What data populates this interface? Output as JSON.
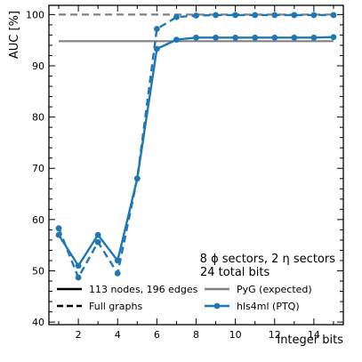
{
  "chart_data": {
    "type": "line",
    "title": "",
    "xlabel": "Integer bits",
    "ylabel": "AUC [%]",
    "xlim": [
      0.5,
      15.5
    ],
    "ylim": [
      39.5,
      101.8
    ],
    "xticks": [
      2,
      4,
      6,
      8,
      10,
      12,
      14
    ],
    "yticks": [
      40,
      50,
      60,
      70,
      80,
      90,
      100
    ],
    "grid": false,
    "annotation": [
      "8 ϕ sectors, 2 η sectors",
      "24 total bits"
    ],
    "reference_lines": [
      {
        "name": "PyG (expected)",
        "style": "solid",
        "value": 94.8,
        "color": "#808080"
      },
      {
        "name": "PyG (expected)",
        "style": "dashed",
        "value": 100.0,
        "color": "#808080"
      }
    ],
    "series": [
      {
        "style": "solid",
        "color": "#1f77b4",
        "x": [
          1,
          2,
          3,
          4,
          5,
          6,
          7,
          8,
          9,
          10,
          11,
          12,
          13,
          14,
          15
        ],
        "values": [
          57.0,
          51.0,
          57.0,
          52.0,
          68.0,
          93.3,
          95.1,
          95.5,
          95.5,
          95.5,
          95.5,
          95.5,
          95.5,
          95.5,
          95.6
        ]
      },
      {
        "style": "dashed",
        "color": "#1f77b4",
        "x": [
          1,
          2,
          3,
          4,
          5,
          6,
          7,
          8,
          9,
          10,
          11,
          12,
          13,
          14,
          15
        ],
        "values": [
          58.3,
          48.7,
          55.6,
          49.5,
          68.0,
          97.2,
          99.5,
          99.8,
          99.9,
          99.9,
          99.9,
          99.9,
          99.9,
          99.9,
          99.9
        ]
      }
    ],
    "legend": {
      "placement": "bottom",
      "entries": [
        {
          "label": "113 nodes, 196 edges",
          "style": "solid",
          "color": "#000000"
        },
        {
          "label": "Full graphs",
          "style": "dashed",
          "color": "#000000"
        },
        {
          "label": "PyG (expected)",
          "style": "solid",
          "color": "#808080"
        },
        {
          "label": "hls4ml (PTQ)",
          "style": "solid-marker",
          "color": "#1f77b4"
        }
      ]
    }
  }
}
